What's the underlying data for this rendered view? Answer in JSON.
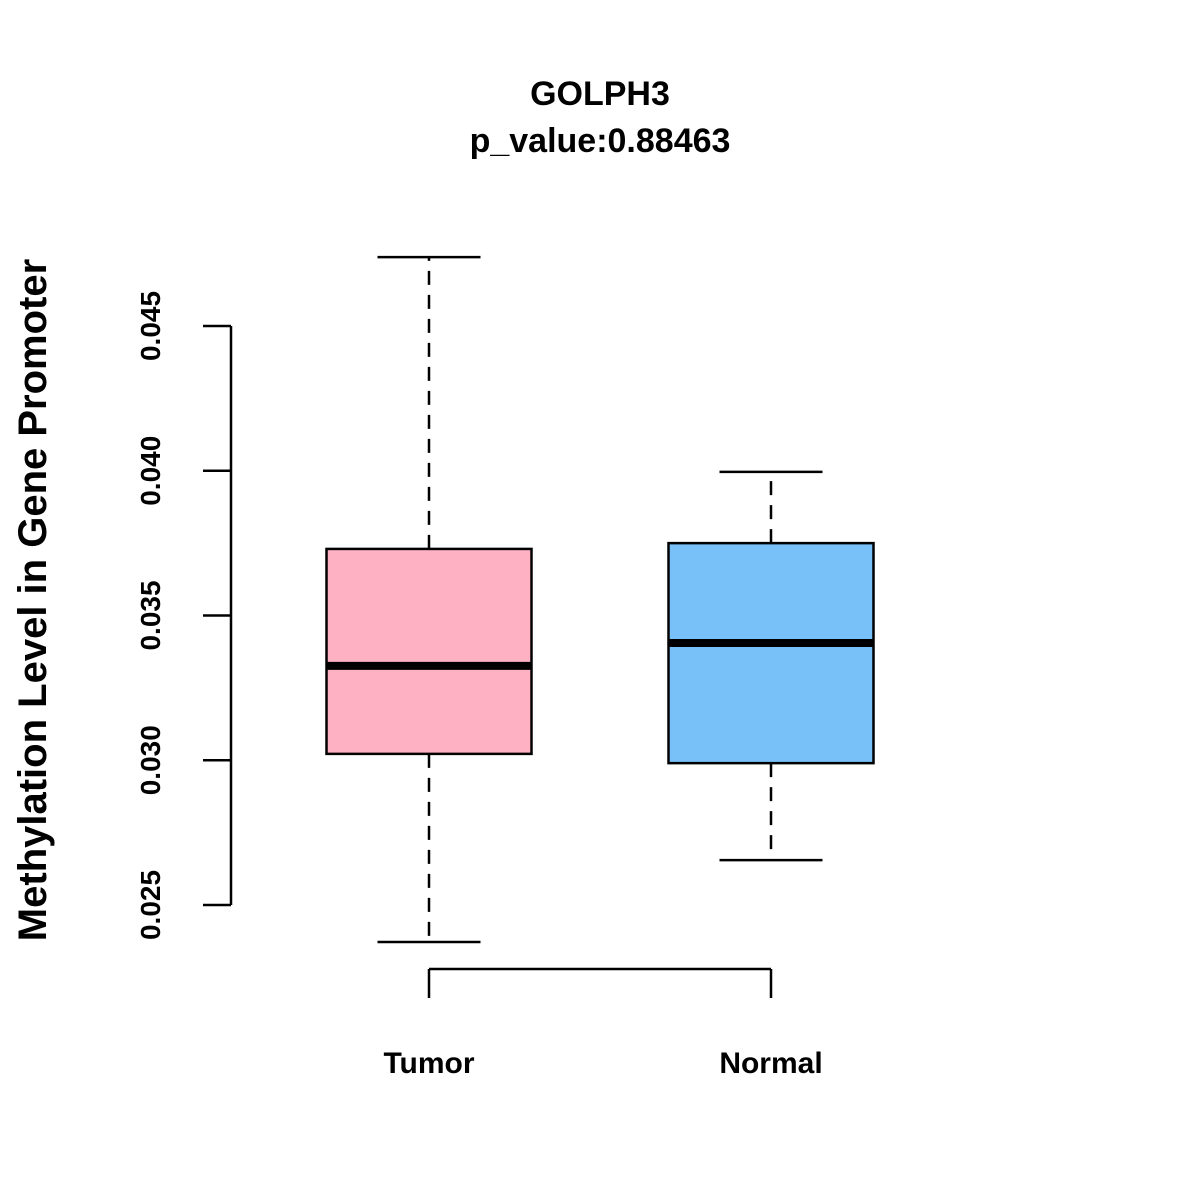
{
  "chart_data": {
    "type": "box",
    "title": "GOLPH3",
    "subtitle": "p_value:0.88463",
    "xlabel": "",
    "ylabel": "Methylation Level in Gene Promoter",
    "ylim": [
      0.0215,
      0.0485
    ],
    "yticks": [
      0.025,
      0.03,
      0.035,
      0.04,
      0.045
    ],
    "ytick_labels": [
      "0.025",
      "0.030",
      "0.035",
      "0.040",
      "0.045"
    ],
    "grid": false,
    "categories": [
      "Tumor",
      "Normal"
    ],
    "series": [
      {
        "name": "Tumor",
        "color": "#FEB1C3",
        "whisker_low": 0.02372,
        "q1": 0.03022,
        "median": 0.03326,
        "q3": 0.0373,
        "whisker_high": 0.04738
      },
      {
        "name": "Normal",
        "color": "#77C1F8",
        "whisker_low": 0.02655,
        "q1": 0.0299,
        "median": 0.03405,
        "q3": 0.0375,
        "whisker_high": 0.03996
      }
    ]
  }
}
